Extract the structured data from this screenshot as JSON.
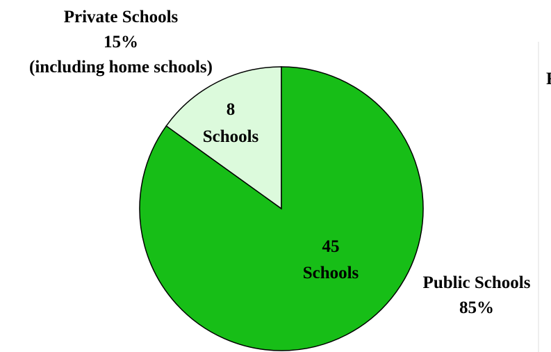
{
  "chart_data": {
    "type": "pie",
    "slices": [
      {
        "name": "Private Schools",
        "percent_label": "15%",
        "note": "(including home schools)",
        "count_value": "8",
        "count_unit": "Schools",
        "value": 8,
        "color": "#dcfadc"
      },
      {
        "name": "Public Schools",
        "percent_label": "85%",
        "count_value": "45",
        "count_unit": "Schools",
        "value": 45,
        "color": "#17be17"
      }
    ],
    "stroke_color": "#000000",
    "clipped_text": "F"
  }
}
